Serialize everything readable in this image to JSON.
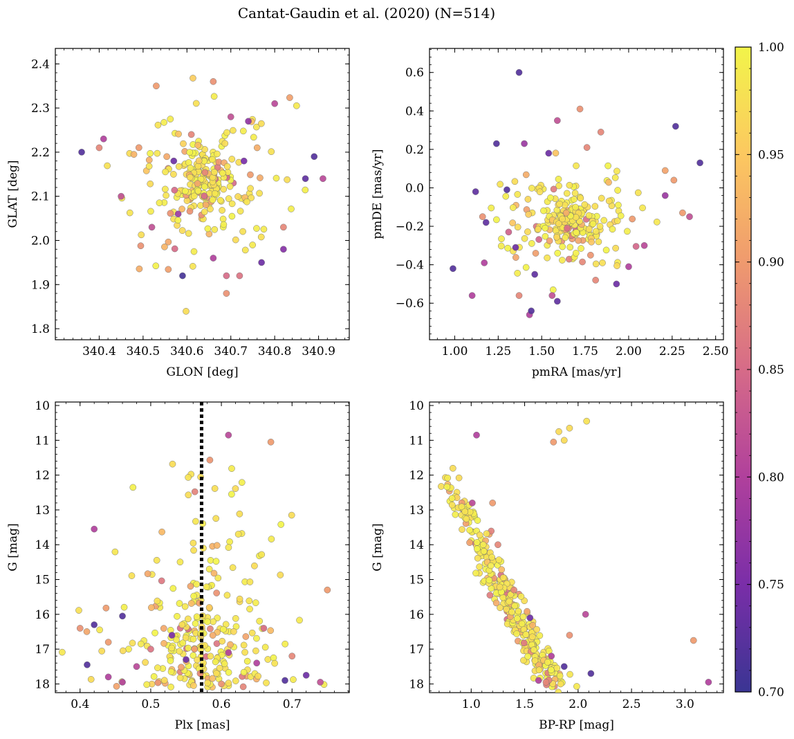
{
  "figure": {
    "title": "Cantat-Gaudin et al. (2020) (N=514)"
  },
  "colorbar": {
    "min": 0.7,
    "max": 1.0,
    "ticks": [
      "0.70",
      "0.75",
      "0.80",
      "0.85",
      "0.90",
      "0.95",
      "1.00"
    ],
    "colormap": "plasma",
    "stops": [
      "#3a3593",
      "#7a2ea8",
      "#b0409c",
      "#d66b88",
      "#ef9a6e",
      "#fcc860",
      "#f2f44a"
    ]
  },
  "chart_data": [
    {
      "id": "glon-glat",
      "type": "scatter",
      "xlabel": "GLON [deg]",
      "ylabel": "GLAT [deg]",
      "xlim": [
        340.3,
        340.97
      ],
      "ylim": [
        1.775,
        2.435
      ],
      "y_inverted": false,
      "xticks": [
        "340.4",
        "340.5",
        "340.6",
        "340.7",
        "340.8",
        "340.9"
      ],
      "yticks": [
        "1.8",
        "1.9",
        "2.0",
        "2.1",
        "2.2",
        "2.3",
        "2.4"
      ],
      "highlighted_points": [
        {
          "x": 340.36,
          "y": 2.2,
          "p": 0.72
        },
        {
          "x": 340.41,
          "y": 2.23,
          "p": 0.8
        },
        {
          "x": 340.4,
          "y": 2.21,
          "p": 0.88
        },
        {
          "x": 340.45,
          "y": 2.1,
          "p": 0.82
        },
        {
          "x": 340.59,
          "y": 1.92,
          "p": 0.71
        },
        {
          "x": 340.89,
          "y": 2.19,
          "p": 0.72
        },
        {
          "x": 340.87,
          "y": 2.14,
          "p": 0.73
        },
        {
          "x": 340.91,
          "y": 2.14,
          "p": 0.81
        },
        {
          "x": 340.82,
          "y": 1.98,
          "p": 0.76
        },
        {
          "x": 340.8,
          "y": 2.31,
          "p": 0.81
        },
        {
          "x": 340.74,
          "y": 2.27,
          "p": 0.77
        },
        {
          "x": 340.77,
          "y": 1.95,
          "p": 0.74
        },
        {
          "x": 340.66,
          "y": 2.36,
          "p": 0.89
        },
        {
          "x": 340.69,
          "y": 1.88,
          "p": 0.89
        },
        {
          "x": 340.7,
          "y": 2.28,
          "p": 0.82
        },
        {
          "x": 340.66,
          "y": 1.96,
          "p": 0.8
        },
        {
          "x": 340.72,
          "y": 1.92,
          "p": 0.86
        },
        {
          "x": 340.57,
          "y": 2.18,
          "p": 0.74
        },
        {
          "x": 340.52,
          "y": 2.03,
          "p": 0.82
        },
        {
          "x": 340.61,
          "y": 2.24,
          "p": 0.88
        },
        {
          "x": 340.53,
          "y": 2.35,
          "p": 0.9
        },
        {
          "x": 340.73,
          "y": 2.18,
          "p": 0.75
        },
        {
          "x": 340.69,
          "y": 1.92,
          "p": 0.85
        },
        {
          "x": 340.82,
          "y": 2.03,
          "p": 0.88
        },
        {
          "x": 340.58,
          "y": 2.06,
          "p": 0.78
        },
        {
          "x": 340.76,
          "y": 2.21,
          "p": 0.92
        }
      ],
      "cloud": {
        "n": 260,
        "x_center": 340.64,
        "y_center": 2.135,
        "x_sd": 0.09,
        "y_sd": 0.095,
        "core_fraction": 0.45,
        "core_x_sd": 0.03,
        "core_y_sd": 0.035
      }
    },
    {
      "id": "pm",
      "type": "scatter",
      "xlabel": "pmRA [mas/yr]",
      "ylabel": "pmDE [mas/yr]",
      "xlim": [
        0.855,
        2.545
      ],
      "ylim": [
        -0.79,
        0.725
      ],
      "y_inverted": false,
      "xticks": [
        "1.00",
        "1.25",
        "1.50",
        "1.75",
        "2.00",
        "2.25",
        "2.50"
      ],
      "yticks": [
        "-0.6",
        "-0.4",
        "-0.2",
        "0.0",
        "0.2",
        "0.4",
        "0.6"
      ],
      "highlighted_points": [
        {
          "x": 1.37,
          "y": 0.6,
          "p": 0.72
        },
        {
          "x": 2.27,
          "y": 0.32,
          "p": 0.72
        },
        {
          "x": 2.41,
          "y": 0.13,
          "p": 0.72
        },
        {
          "x": 1.24,
          "y": 0.23,
          "p": 0.72
        },
        {
          "x": 1.12,
          "y": -0.02,
          "p": 0.73
        },
        {
          "x": 0.99,
          "y": -0.42,
          "p": 0.72
        },
        {
          "x": 1.1,
          "y": -0.56,
          "p": 0.8
        },
        {
          "x": 1.43,
          "y": -0.66,
          "p": 0.8
        },
        {
          "x": 1.44,
          "y": -0.64,
          "p": 0.72
        },
        {
          "x": 1.59,
          "y": -0.59,
          "p": 0.73
        },
        {
          "x": 1.56,
          "y": -0.56,
          "p": 0.82
        },
        {
          "x": 1.37,
          "y": -0.56,
          "p": 0.88
        },
        {
          "x": 1.72,
          "y": 0.41,
          "p": 0.89
        },
        {
          "x": 1.84,
          "y": 0.29,
          "p": 0.88
        },
        {
          "x": 1.59,
          "y": 0.35,
          "p": 0.82
        },
        {
          "x": 1.4,
          "y": 0.23,
          "p": 0.78
        },
        {
          "x": 1.54,
          "y": 0.18,
          "p": 0.74
        },
        {
          "x": 1.76,
          "y": 0.21,
          "p": 0.88
        },
        {
          "x": 2.21,
          "y": 0.09,
          "p": 0.91
        },
        {
          "x": 2.26,
          "y": 0.04,
          "p": 0.9
        },
        {
          "x": 2.31,
          "y": -0.13,
          "p": 0.9
        },
        {
          "x": 2.35,
          "y": -0.15,
          "p": 0.82
        },
        {
          "x": 2.21,
          "y": -0.04,
          "p": 0.78
        },
        {
          "x": 2.09,
          "y": -0.3,
          "p": 0.81
        },
        {
          "x": 2.0,
          "y": -0.41,
          "p": 0.8
        },
        {
          "x": 1.93,
          "y": -0.5,
          "p": 0.74
        },
        {
          "x": 1.81,
          "y": -0.48,
          "p": 0.88
        },
        {
          "x": 1.17,
          "y": -0.39,
          "p": 0.8
        },
        {
          "x": 1.18,
          "y": -0.18,
          "p": 0.73
        },
        {
          "x": 1.31,
          "y": -0.23,
          "p": 0.84
        },
        {
          "x": 1.35,
          "y": -0.31,
          "p": 0.74
        },
        {
          "x": 1.16,
          "y": -0.15,
          "p": 0.89
        },
        {
          "x": 1.46,
          "y": -0.45,
          "p": 0.73
        },
        {
          "x": 1.3,
          "y": -0.01,
          "p": 0.72
        }
      ],
      "cloud": {
        "n": 240,
        "x_center": 1.66,
        "y_center": -0.18,
        "x_sd": 0.19,
        "y_sd": 0.12,
        "core_fraction": 0.4,
        "core_x_sd": 0.08,
        "core_y_sd": 0.06
      }
    },
    {
      "id": "plx-g",
      "type": "scatter",
      "xlabel": "Plx [mas]",
      "ylabel": "G [mag]",
      "xlim": [
        0.365,
        0.781
      ],
      "ylim": [
        18.25,
        9.9
      ],
      "y_inverted": true,
      "xticks": [
        "0.4",
        "0.5",
        "0.6",
        "0.7"
      ],
      "yticks": [
        "10",
        "11",
        "12",
        "13",
        "14",
        "15",
        "16",
        "17",
        "18"
      ],
      "vline": {
        "x": 0.572,
        "style": "dotted"
      },
      "highlighted_points": [
        {
          "x": 0.42,
          "y": 13.55,
          "p": 0.8
        },
        {
          "x": 0.46,
          "y": 17.95,
          "p": 0.8
        },
        {
          "x": 0.41,
          "y": 17.45,
          "p": 0.72
        },
        {
          "x": 0.44,
          "y": 17.8,
          "p": 0.8
        },
        {
          "x": 0.42,
          "y": 16.3,
          "p": 0.72
        },
        {
          "x": 0.4,
          "y": 16.4,
          "p": 0.89
        },
        {
          "x": 0.61,
          "y": 10.85,
          "p": 0.81
        },
        {
          "x": 0.67,
          "y": 11.05,
          "p": 0.9
        },
        {
          "x": 0.74,
          "y": 17.95,
          "p": 0.82
        },
        {
          "x": 0.72,
          "y": 17.75,
          "p": 0.74
        },
        {
          "x": 0.75,
          "y": 15.3,
          "p": 0.9
        },
        {
          "x": 0.46,
          "y": 16.05,
          "p": 0.72
        },
        {
          "x": 0.55,
          "y": 17.3,
          "p": 0.74
        },
        {
          "x": 0.65,
          "y": 17.4,
          "p": 0.8
        },
        {
          "x": 0.69,
          "y": 17.9,
          "p": 0.72
        },
        {
          "x": 0.53,
          "y": 16.6,
          "p": 0.75
        },
        {
          "x": 0.61,
          "y": 17.1,
          "p": 0.8
        },
        {
          "x": 0.48,
          "y": 17.5,
          "p": 0.81
        },
        {
          "x": 0.57,
          "y": 17.7,
          "p": 0.88
        },
        {
          "x": 0.6,
          "y": 18.0,
          "p": 0.89
        },
        {
          "x": 0.66,
          "y": 16.4,
          "p": 0.85
        },
        {
          "x": 0.5,
          "y": 17.0,
          "p": 0.86
        },
        {
          "x": 0.44,
          "y": 16.8,
          "p": 0.9
        },
        {
          "x": 0.7,
          "y": 17.2,
          "p": 0.88
        }
      ],
      "cloud": {
        "n": 270,
        "x_center": 0.575,
        "y_center": 16.2,
        "x_sd": 0.075,
        "y_sd": 1.4,
        "core_fraction": 0.45,
        "core_x_sd": 0.03,
        "core_y_sd": 1.3
      }
    },
    {
      "id": "cmd",
      "type": "scatter",
      "xlabel": "BP-RP [mag]",
      "ylabel": "G [mag]",
      "xlim": [
        0.61,
        3.36
      ],
      "ylim": [
        18.25,
        9.9
      ],
      "y_inverted": true,
      "xticks": [
        "1.0",
        "1.5",
        "2.0",
        "2.5",
        "3.0"
      ],
      "yticks": [
        "10",
        "11",
        "12",
        "13",
        "14",
        "15",
        "16",
        "17",
        "18"
      ],
      "highlighted_points": [
        {
          "x": 1.05,
          "y": 10.85,
          "p": 0.8
        },
        {
          "x": 1.77,
          "y": 11.05,
          "p": 0.9
        },
        {
          "x": 1.92,
          "y": 10.65,
          "p": 0.97
        },
        {
          "x": 1.82,
          "y": 10.75,
          "p": 0.97
        },
        {
          "x": 2.08,
          "y": 10.45,
          "p": 0.98
        },
        {
          "x": 1.87,
          "y": 11.0,
          "p": 0.97
        },
        {
          "x": 3.22,
          "y": 17.95,
          "p": 0.8
        },
        {
          "x": 3.08,
          "y": 16.75,
          "p": 0.9
        },
        {
          "x": 2.12,
          "y": 17.7,
          "p": 0.72
        },
        {
          "x": 2.07,
          "y": 16.0,
          "p": 0.81
        },
        {
          "x": 1.92,
          "y": 16.6,
          "p": 0.89
        },
        {
          "x": 1.87,
          "y": 17.5,
          "p": 0.72
        },
        {
          "x": 1.7,
          "y": 17.95,
          "p": 0.88
        },
        {
          "x": 1.63,
          "y": 17.9,
          "p": 0.8
        },
        {
          "x": 1.55,
          "y": 16.1,
          "p": 0.74
        },
        {
          "x": 1.01,
          "y": 12.8,
          "p": 0.81
        },
        {
          "x": 1.2,
          "y": 12.8,
          "p": 0.9
        },
        {
          "x": 1.25,
          "y": 14.0,
          "p": 0.88
        },
        {
          "x": 1.4,
          "y": 15.3,
          "p": 0.88
        },
        {
          "x": 1.75,
          "y": 17.2,
          "p": 0.8
        }
      ],
      "sequence": {
        "n": 300,
        "g_min": 11.8,
        "g_max": 18.1
      }
    }
  ]
}
